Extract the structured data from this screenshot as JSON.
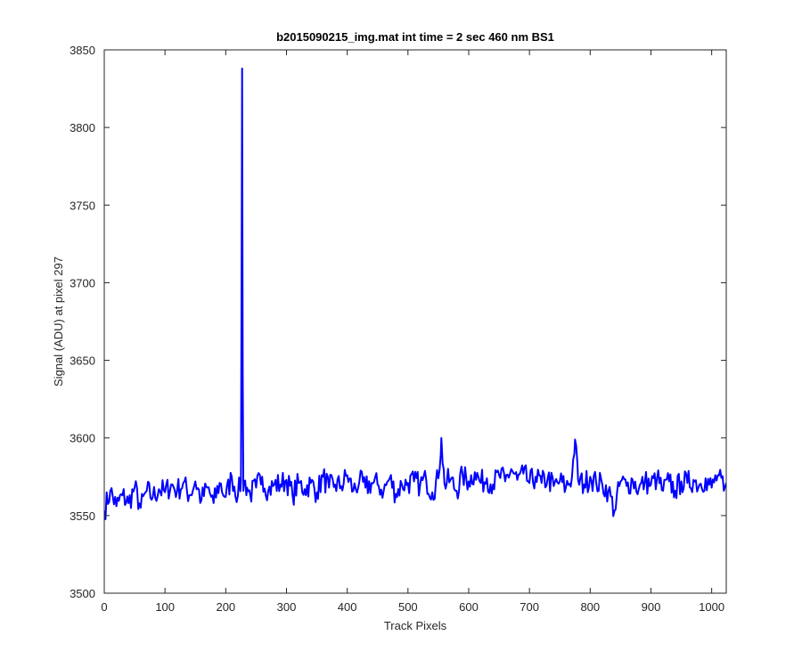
{
  "colors": {
    "series": "#0000ff",
    "axes": "#262626",
    "background": "#ffffff"
  },
  "chart_data": {
    "type": "line",
    "title": "b2015090215_img.mat int time = 2 sec  460 nm BS1",
    "xlabel": "Track Pixels",
    "ylabel": "Signal (ADU) at pixel 297",
    "xlim": [
      0,
      1024
    ],
    "ylim": [
      3500,
      3850
    ],
    "xticks": [
      0,
      100,
      200,
      300,
      400,
      500,
      600,
      700,
      800,
      900,
      1000
    ],
    "yticks": [
      3500,
      3550,
      3600,
      3650,
      3700,
      3750,
      3800,
      3850
    ],
    "grid": false,
    "series": [
      {
        "color": "#0000ff",
        "x": [
          0,
          10,
          20,
          30,
          40,
          50,
          60,
          70,
          80,
          90,
          100,
          110,
          120,
          130,
          140,
          150,
          160,
          170,
          180,
          190,
          200,
          210,
          220,
          225,
          226,
          227,
          228,
          229,
          230,
          235,
          240,
          250,
          260,
          270,
          280,
          290,
          300,
          310,
          320,
          330,
          340,
          350,
          360,
          370,
          380,
          390,
          400,
          410,
          420,
          430,
          440,
          450,
          460,
          470,
          480,
          490,
          500,
          510,
          520,
          530,
          540,
          550,
          555,
          560,
          570,
          580,
          590,
          600,
          610,
          620,
          630,
          640,
          650,
          660,
          670,
          680,
          690,
          700,
          710,
          720,
          730,
          740,
          750,
          760,
          770,
          775,
          780,
          790,
          800,
          810,
          820,
          830,
          840,
          850,
          860,
          870,
          880,
          890,
          900,
          910,
          920,
          930,
          940,
          950,
          960,
          970,
          980,
          990,
          1000,
          1010,
          1020,
          1024
        ],
        "y": [
          3553,
          3566,
          3556,
          3563,
          3558,
          3568,
          3555,
          3566,
          3562,
          3567,
          3565,
          3570,
          3566,
          3571,
          3563,
          3572,
          3560,
          3568,
          3558,
          3571,
          3562,
          3575,
          3563,
          3572,
          3700,
          3838,
          3640,
          3566,
          3572,
          3568,
          3564,
          3568,
          3575,
          3566,
          3570,
          3570,
          3573,
          3563,
          3571,
          3567,
          3571,
          3565,
          3575,
          3568,
          3570,
          3569,
          3576,
          3566,
          3572,
          3568,
          3571,
          3570,
          3566,
          3574,
          3564,
          3570,
          3571,
          3572,
          3570,
          3573,
          3565,
          3574,
          3600,
          3571,
          3573,
          3566,
          3576,
          3572,
          3578,
          3571,
          3574,
          3570,
          3576,
          3572,
          3580,
          3573,
          3577,
          3571,
          3575,
          3571,
          3574,
          3569,
          3572,
          3568,
          3575,
          3599,
          3573,
          3570,
          3575,
          3571,
          3570,
          3566,
          3553,
          3572,
          3569,
          3573,
          3567,
          3572,
          3570,
          3574,
          3566,
          3572,
          3566,
          3572,
          3571,
          3573,
          3570,
          3574,
          3568,
          3576,
          3566,
          3571
        ]
      }
    ]
  }
}
